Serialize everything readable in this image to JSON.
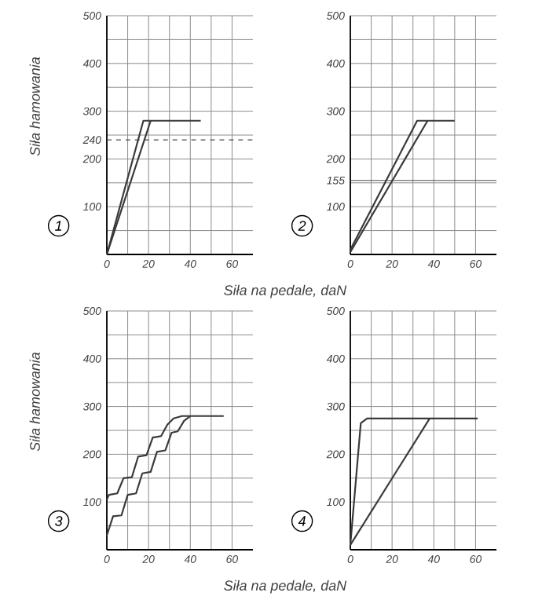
{
  "chart_data": [
    {
      "type": "line",
      "xlabel": "Siła na pedale, daN",
      "ylabel": "Siła hamowania",
      "annotations": [
        "1"
      ],
      "grid": true,
      "xlim": [
        0,
        70
      ],
      "ylim": [
        0,
        500
      ],
      "xticks": [
        0,
        {
          "value": 10,
          "label": null
        },
        20,
        {
          "value": 30,
          "label": null
        },
        40,
        {
          "value": 50,
          "label": null
        },
        60
      ],
      "yticks": [
        {
          "value": 50,
          "label": null
        },
        100,
        {
          "value": 150,
          "label": null
        },
        200,
        {
          "value": 250,
          "label": null
        },
        300,
        {
          "value": 350,
          "label": null
        },
        400,
        {
          "value": 450,
          "label": null
        },
        500
      ],
      "ref_lines": [
        {
          "axis": "y",
          "value": 240,
          "label": "240",
          "line_style": "dashed"
        }
      ],
      "series": [
        {
          "color": "#3a3a3a",
          "x": [
            0,
            17.5,
            45
          ],
          "values": [
            0,
            280,
            280
          ]
        },
        {
          "color": "#3a3a3a",
          "x": [
            0,
            21
          ],
          "values": [
            0,
            280
          ]
        }
      ]
    },
    {
      "type": "line",
      "annotations": [
        "2"
      ],
      "grid": true,
      "xlim": [
        0,
        70
      ],
      "ylim": [
        0,
        500
      ],
      "xticks": [
        0,
        {
          "value": 10,
          "label": null
        },
        20,
        {
          "value": 30,
          "label": null
        },
        40,
        {
          "value": 50,
          "label": null
        },
        60
      ],
      "yticks": [
        {
          "value": 50,
          "label": null
        },
        100,
        {
          "value": 150,
          "label": null
        },
        200,
        {
          "value": 250,
          "label": null
        },
        300,
        {
          "value": 350,
          "label": null
        },
        400,
        {
          "value": 450,
          "label": null
        },
        500
      ],
      "ref_lines": [
        {
          "axis": "y",
          "value": 155,
          "label": "155",
          "line_style": "solid"
        }
      ],
      "series": [
        {
          "color": "#3a3a3a",
          "x": [
            0,
            32,
            50
          ],
          "values": [
            10,
            280,
            280
          ]
        },
        {
          "color": "#3a3a3a",
          "x": [
            0,
            37
          ],
          "values": [
            5,
            280
          ]
        }
      ]
    },
    {
      "type": "line",
      "xlabel": "Siła na pedale, daN",
      "ylabel": "Siła hamowania",
      "annotations": [
        "3"
      ],
      "grid": true,
      "xlim": [
        0,
        70
      ],
      "ylim": [
        0,
        500
      ],
      "xticks": [
        0,
        {
          "value": 10,
          "label": null
        },
        20,
        {
          "value": 30,
          "label": null
        },
        40,
        {
          "value": 50,
          "label": null
        },
        60
      ],
      "yticks": [
        {
          "value": 50,
          "label": null
        },
        100,
        {
          "value": 150,
          "label": null
        },
        200,
        {
          "value": 250,
          "label": null
        },
        300,
        {
          "value": 350,
          "label": null
        },
        400,
        {
          "value": 450,
          "label": null
        },
        500
      ],
      "series": [
        {
          "color": "#3a3a3a",
          "x": [
            0,
            1,
            5,
            8,
            12,
            15,
            19,
            22,
            26,
            29,
            32,
            36,
            56
          ],
          "values": [
            105,
            115,
            118,
            150,
            152,
            195,
            198,
            235,
            238,
            262,
            275,
            280,
            280
          ]
        },
        {
          "color": "#3a3a3a",
          "x": [
            0,
            3,
            7,
            10,
            14,
            17,
            21,
            24,
            28,
            31,
            34,
            37,
            40
          ],
          "values": [
            30,
            70,
            72,
            115,
            118,
            160,
            163,
            205,
            208,
            245,
            248,
            270,
            280
          ]
        }
      ]
    },
    {
      "type": "line",
      "annotations": [
        "4"
      ],
      "grid": true,
      "xlim": [
        0,
        70
      ],
      "ylim": [
        0,
        500
      ],
      "xticks": [
        0,
        {
          "value": 10,
          "label": null
        },
        20,
        {
          "value": 30,
          "label": null
        },
        40,
        {
          "value": 50,
          "label": null
        },
        60
      ],
      "yticks": [
        {
          "value": 50,
          "label": null
        },
        100,
        {
          "value": 150,
          "label": null
        },
        200,
        {
          "value": 250,
          "label": null
        },
        300,
        {
          "value": 350,
          "label": null
        },
        400,
        {
          "value": 450,
          "label": null
        },
        500
      ],
      "series": [
        {
          "color": "#3a3a3a",
          "x": [
            0,
            5,
            8,
            61
          ],
          "values": [
            10,
            265,
            275,
            275
          ]
        },
        {
          "color": "#3a3a3a",
          "x": [
            0,
            38
          ],
          "values": [
            10,
            275
          ]
        }
      ]
    }
  ]
}
